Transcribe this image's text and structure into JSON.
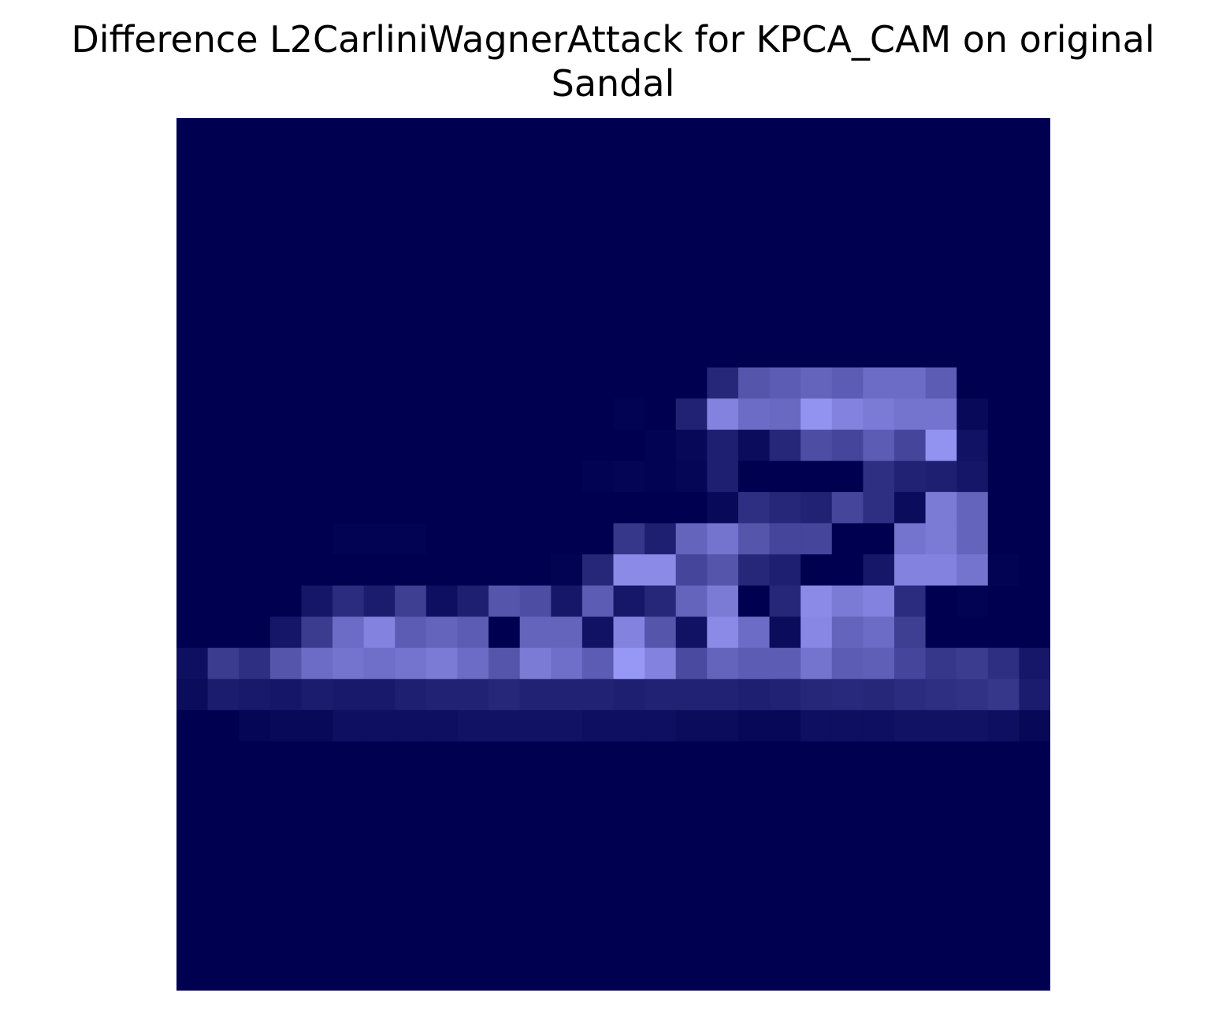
{
  "chart_data": {
    "type": "heatmap",
    "title_lines": [
      "Difference L2CarliniWagnerAttack for KPCA_CAM on original",
      "Sandal"
    ],
    "xlabel": "",
    "ylabel": "",
    "axes_visible": false,
    "grid": false,
    "legend": "none",
    "rows": 28,
    "cols": 28,
    "color_low": "#000050",
    "color_high": "#9a9af8",
    "values": [
      [
        0,
        0,
        0,
        0,
        0,
        0,
        0,
        0,
        0,
        0,
        0,
        0,
        0,
        0,
        0,
        0,
        0,
        0,
        0,
        0,
        0,
        0,
        0,
        0,
        0,
        0,
        0,
        0
      ],
      [
        0,
        0,
        0,
        0,
        0,
        0,
        0,
        0,
        0,
        0,
        0,
        0,
        0,
        0,
        0,
        0,
        0,
        0,
        0,
        0,
        0,
        0,
        0,
        0,
        0,
        0,
        0,
        0
      ],
      [
        0,
        0,
        0,
        0,
        0,
        0,
        0,
        0,
        0,
        0,
        0,
        0,
        0,
        0,
        0,
        0,
        0,
        0,
        0,
        0,
        0,
        0,
        0,
        0,
        0,
        0,
        0,
        0
      ],
      [
        0,
        0,
        0,
        0,
        0,
        0,
        0,
        0,
        0,
        0,
        0,
        0,
        0,
        0,
        0,
        0,
        0,
        0,
        0,
        0,
        0,
        0,
        0,
        0,
        0,
        0,
        0,
        0
      ],
      [
        0,
        0,
        0,
        0,
        0,
        0,
        0,
        0,
        0,
        0,
        0,
        0,
        0,
        0,
        0,
        0,
        0,
        0,
        0,
        0,
        0,
        0,
        0,
        0,
        0,
        0,
        0,
        0
      ],
      [
        0,
        0,
        0,
        0,
        0,
        0,
        0,
        0,
        0,
        0,
        0,
        0,
        0,
        0,
        0,
        0,
        0,
        0,
        0,
        0,
        0,
        0,
        0,
        0,
        0,
        0,
        0,
        0
      ],
      [
        0,
        0,
        0,
        0,
        0,
        0,
        0,
        0,
        0,
        0,
        0,
        0,
        0,
        0,
        0,
        0,
        0,
        0,
        0,
        0,
        0,
        0,
        0,
        0,
        0,
        0,
        0,
        0
      ],
      [
        0,
        0,
        0,
        0,
        0,
        0,
        0,
        0,
        0,
        0,
        0,
        0,
        0,
        0,
        0,
        0,
        0,
        0,
        0,
        0,
        0,
        0,
        0,
        0,
        0,
        0,
        0,
        0
      ],
      [
        0,
        0,
        0,
        0,
        0,
        0,
        0,
        0,
        0,
        0,
        0,
        0,
        0,
        0,
        0,
        0,
        0,
        0.25,
        0.55,
        0.6,
        0.65,
        0.6,
        0.7,
        0.7,
        0.6,
        0,
        0,
        0
      ],
      [
        0,
        0,
        0,
        0,
        0,
        0,
        0,
        0,
        0,
        0,
        0,
        0,
        0,
        0,
        0.02,
        0,
        0.22,
        0.85,
        0.7,
        0.68,
        0.95,
        0.85,
        0.8,
        0.75,
        0.75,
        0.06,
        0,
        0
      ],
      [
        0,
        0,
        0,
        0,
        0,
        0,
        0,
        0,
        0,
        0,
        0,
        0,
        0,
        0,
        0,
        0.02,
        0.05,
        0.2,
        0.08,
        0.25,
        0.5,
        0.45,
        0.6,
        0.45,
        0.95,
        0.12,
        0,
        0
      ],
      [
        0,
        0,
        0,
        0,
        0,
        0,
        0,
        0,
        0,
        0,
        0,
        0,
        0,
        0.02,
        0.03,
        0.02,
        0.04,
        0.2,
        0,
        0,
        0,
        0,
        0.3,
        0.22,
        0.2,
        0.14,
        0,
        0
      ],
      [
        0,
        0,
        0,
        0,
        0,
        0,
        0,
        0,
        0,
        0,
        0,
        0,
        0,
        0,
        0,
        0,
        0,
        0.06,
        0.3,
        0.25,
        0.22,
        0.45,
        0.3,
        0.08,
        0.8,
        0.65,
        0,
        0
      ],
      [
        0,
        0,
        0,
        0,
        0,
        0.02,
        0.02,
        0.02,
        0,
        0,
        0,
        0,
        0,
        0,
        0.35,
        0.2,
        0.65,
        0.75,
        0.55,
        0.45,
        0.45,
        0,
        0,
        0.75,
        0.8,
        0.65,
        0,
        0
      ],
      [
        0,
        0,
        0,
        0,
        0,
        0,
        0,
        0,
        0,
        0,
        0,
        0,
        0.02,
        0.25,
        0.9,
        0.9,
        0.45,
        0.55,
        0.25,
        0.2,
        0,
        0,
        0.15,
        0.85,
        0.85,
        0.75,
        0.02,
        0
      ],
      [
        0,
        0,
        0,
        0,
        0.14,
        0.28,
        0.18,
        0.4,
        0.1,
        0.2,
        0.55,
        0.5,
        0.15,
        0.6,
        0.15,
        0.25,
        0.65,
        0.8,
        0,
        0.25,
        0.9,
        0.8,
        0.85,
        0.28,
        0,
        0.02,
        0,
        0
      ],
      [
        0,
        0,
        0,
        0.14,
        0.38,
        0.7,
        0.85,
        0.6,
        0.65,
        0.6,
        0,
        0.65,
        0.65,
        0.12,
        0.85,
        0.55,
        0.12,
        0.9,
        0.7,
        0.08,
        0.88,
        0.65,
        0.7,
        0.4,
        0,
        0,
        0,
        0
      ],
      [
        0.1,
        0.38,
        0.3,
        0.55,
        0.7,
        0.75,
        0.72,
        0.75,
        0.8,
        0.7,
        0.55,
        0.8,
        0.72,
        0.6,
        0.98,
        0.85,
        0.48,
        0.65,
        0.6,
        0.6,
        0.75,
        0.6,
        0.62,
        0.45,
        0.35,
        0.38,
        0.3,
        0.15
      ],
      [
        0.08,
        0.18,
        0.16,
        0.14,
        0.18,
        0.16,
        0.16,
        0.2,
        0.22,
        0.22,
        0.25,
        0.22,
        0.22,
        0.22,
        0.2,
        0.22,
        0.22,
        0.22,
        0.2,
        0.22,
        0.25,
        0.26,
        0.25,
        0.28,
        0.3,
        0.32,
        0.35,
        0.18
      ],
      [
        0,
        0,
        0.04,
        0.06,
        0.06,
        0.1,
        0.1,
        0.1,
        0.1,
        0.12,
        0.12,
        0.12,
        0.12,
        0.1,
        0.1,
        0.1,
        0.08,
        0.08,
        0.05,
        0.05,
        0.1,
        0.1,
        0.1,
        0.12,
        0.12,
        0.12,
        0.1,
        0.05
      ],
      [
        0,
        0,
        0,
        0,
        0,
        0,
        0,
        0,
        0,
        0,
        0,
        0,
        0,
        0,
        0,
        0,
        0,
        0,
        0,
        0,
        0,
        0,
        0,
        0,
        0,
        0,
        0,
        0
      ],
      [
        0,
        0,
        0,
        0,
        0,
        0,
        0,
        0,
        0,
        0,
        0,
        0,
        0,
        0,
        0,
        0,
        0,
        0,
        0,
        0,
        0,
        0,
        0,
        0,
        0,
        0,
        0,
        0
      ],
      [
        0,
        0,
        0,
        0,
        0,
        0,
        0,
        0,
        0,
        0,
        0,
        0,
        0,
        0,
        0,
        0,
        0,
        0,
        0,
        0,
        0,
        0,
        0,
        0,
        0,
        0,
        0,
        0
      ],
      [
        0,
        0,
        0,
        0,
        0,
        0,
        0,
        0,
        0,
        0,
        0,
        0,
        0,
        0,
        0,
        0,
        0,
        0,
        0,
        0,
        0,
        0,
        0,
        0,
        0,
        0,
        0,
        0
      ],
      [
        0,
        0,
        0,
        0,
        0,
        0,
        0,
        0,
        0,
        0,
        0,
        0,
        0,
        0,
        0,
        0,
        0,
        0,
        0,
        0,
        0,
        0,
        0,
        0,
        0,
        0,
        0,
        0
      ],
      [
        0,
        0,
        0,
        0,
        0,
        0,
        0,
        0,
        0,
        0,
        0,
        0,
        0,
        0,
        0,
        0,
        0,
        0,
        0,
        0,
        0,
        0,
        0,
        0,
        0,
        0,
        0,
        0
      ],
      [
        0,
        0,
        0,
        0,
        0,
        0,
        0,
        0,
        0,
        0,
        0,
        0,
        0,
        0,
        0,
        0,
        0,
        0,
        0,
        0,
        0,
        0,
        0,
        0,
        0,
        0,
        0,
        0
      ],
      [
        0,
        0,
        0,
        0,
        0,
        0,
        0,
        0,
        0,
        0,
        0,
        0,
        0,
        0,
        0,
        0,
        0,
        0,
        0,
        0,
        0,
        0,
        0,
        0,
        0,
        0,
        0,
        0
      ]
    ]
  }
}
